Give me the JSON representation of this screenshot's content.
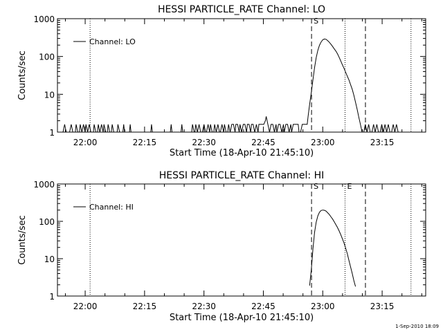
{
  "footer_timestamp": "1-Sep-2010 18:09",
  "time_origin_label": "Start Time (18-Apr-10 21:45:10)",
  "marker_labels": {
    "start": "S",
    "end": "E"
  },
  "chart_data": [
    {
      "type": "line",
      "title": "HESSI PARTICLE_RATE Channel: LO",
      "legend": "Channel: LO",
      "legend_position": "top-left",
      "xlabel": "Start Time (18-Apr-10 21:45:10)",
      "ylabel": "Counts/sec",
      "yscale": "log",
      "xlim": [
        21.8833,
        23.4333
      ],
      "ylim": [
        1,
        1000
      ],
      "x_unit": "hours (UT)",
      "xticks": [
        {
          "value": 22.0,
          "label": "22:00"
        },
        {
          "value": 22.25,
          "label": "22:15"
        },
        {
          "value": 22.5,
          "label": "22:30"
        },
        {
          "value": 22.75,
          "label": "22:45"
        },
        {
          "value": 23.0,
          "label": "23:00"
        },
        {
          "value": 23.25,
          "label": "23:15"
        }
      ],
      "yticks": [
        {
          "value": 1,
          "label": "1"
        },
        {
          "value": 10,
          "label": "10"
        },
        {
          "value": 100,
          "label": "100"
        },
        {
          "value": 1000,
          "label": "1000"
        }
      ],
      "markers": [
        {
          "kind": "dotted",
          "x": 22.0207
        },
        {
          "kind": "dashed",
          "x": 22.9528,
          "label": "S"
        },
        {
          "kind": "dotted",
          "x": 23.0938
        },
        {
          "kind": "dashed",
          "x": 23.1797
        },
        {
          "kind": "dotted",
          "x": 23.3714
        }
      ],
      "series": [
        {
          "name": "Channel: LO",
          "data": [
            [
              21.9066,
              1
            ],
            [
              21.9135,
              1.6
            ],
            [
              21.9204,
              1
            ],
            [
              21.9343,
              1
            ],
            [
              21.9412,
              1.6
            ],
            [
              21.9481,
              1
            ],
            [
              21.9584,
              1
            ],
            [
              21.9619,
              1.6
            ],
            [
              21.9688,
              1
            ],
            [
              21.9757,
              1
            ],
            [
              21.9792,
              1.6
            ],
            [
              21.9861,
              1
            ],
            [
              21.9929,
              1.6
            ],
            [
              21.9998,
              1
            ],
            [
              22.0033,
              1.6
            ],
            [
              22.0102,
              1
            ],
            [
              22.0171,
              1.6
            ],
            [
              22.024,
              1
            ],
            [
              22.0344,
              1
            ],
            [
              22.0378,
              1.6
            ],
            [
              22.0447,
              1
            ],
            [
              22.0516,
              1
            ],
            [
              22.0551,
              1.6
            ],
            [
              22.062,
              1
            ],
            [
              22.0689,
              1.6
            ],
            [
              22.0758,
              1
            ],
            [
              22.0792,
              1.6
            ],
            [
              22.0861,
              1
            ],
            [
              22.093,
              1
            ],
            [
              22.0965,
              1.6
            ],
            [
              22.1034,
              1
            ],
            [
              22.1103,
              1
            ],
            [
              22.1137,
              1.6
            ],
            [
              22.1206,
              1
            ],
            [
              22.1275,
              1
            ],
            [
              22.1344,
              1
            ],
            [
              22.1379,
              1.6
            ],
            [
              22.1448,
              1
            ],
            [
              22.1517,
              1
            ],
            [
              22.1586,
              1
            ],
            [
              22.162,
              1.6
            ],
            [
              22.1655,
              1
            ],
            [
              22.1862,
              1
            ],
            [
              22.1896,
              1.6
            ],
            [
              22.1931,
              1
            ],
            [
              22.2759,
              1
            ],
            [
              22.2793,
              1.6
            ],
            [
              22.2828,
              1
            ],
            [
              22.3586,
              1
            ],
            [
              22.3621,
              1.6
            ],
            [
              22.3655,
              1
            ],
            [
              22.4034,
              1
            ],
            [
              22.4069,
              1.6
            ],
            [
              22.4103,
              1
            ],
            [
              22.4483,
              1
            ],
            [
              22.4517,
              1.6
            ],
            [
              22.4586,
              1
            ],
            [
              22.462,
              1
            ],
            [
              22.4655,
              1.6
            ],
            [
              22.4724,
              1
            ],
            [
              22.4793,
              1.6
            ],
            [
              22.4862,
              1
            ],
            [
              22.4931,
              1
            ],
            [
              22.5,
              1.6
            ],
            [
              22.5069,
              1
            ],
            [
              22.5103,
              1
            ],
            [
              22.5172,
              1.6
            ],
            [
              22.5241,
              1
            ],
            [
              22.5276,
              1.6
            ],
            [
              22.5345,
              1
            ],
            [
              22.5414,
              1
            ],
            [
              22.5448,
              1.6
            ],
            [
              22.5517,
              1
            ],
            [
              22.5586,
              1.6
            ],
            [
              22.5655,
              1
            ],
            [
              22.569,
              1
            ],
            [
              22.5759,
              1.6
            ],
            [
              22.5828,
              1
            ],
            [
              22.5862,
              1.6
            ],
            [
              22.5931,
              1
            ],
            [
              22.6,
              1
            ],
            [
              22.6034,
              1.6
            ],
            [
              22.6103,
              1
            ],
            [
              22.6172,
              1.6
            ],
            [
              22.6241,
              1.6
            ],
            [
              22.631,
              1
            ],
            [
              22.6345,
              1.6
            ],
            [
              22.6414,
              1.6
            ],
            [
              22.6483,
              1
            ],
            [
              22.6517,
              1.6
            ],
            [
              22.6586,
              1
            ],
            [
              22.6655,
              1.6
            ],
            [
              22.6724,
              1.6
            ],
            [
              22.6793,
              1
            ],
            [
              22.6828,
              1.6
            ],
            [
              22.6897,
              1.6
            ],
            [
              22.6966,
              1
            ],
            [
              22.7,
              1.6
            ],
            [
              22.7069,
              1.6
            ],
            [
              22.7138,
              1
            ],
            [
              22.7207,
              1.6
            ],
            [
              22.7276,
              1
            ],
            [
              22.731,
              1.6
            ],
            [
              22.7379,
              1.6
            ],
            [
              22.7448,
              1.6
            ],
            [
              22.7517,
              1.6
            ],
            [
              22.7586,
              2
            ],
            [
              22.7621,
              2.6
            ],
            [
              22.769,
              1.6
            ],
            [
              22.7759,
              1
            ],
            [
              22.7828,
              1.6
            ],
            [
              22.7897,
              1.6
            ],
            [
              22.7966,
              1
            ],
            [
              22.8034,
              1.6
            ],
            [
              22.8069,
              1
            ],
            [
              22.8138,
              1.6
            ],
            [
              22.8207,
              1.6
            ],
            [
              22.8276,
              1
            ],
            [
              22.8345,
              1.6
            ],
            [
              22.8379,
              1
            ],
            [
              22.8448,
              1.6
            ],
            [
              22.8517,
              1.6
            ],
            [
              22.8586,
              1
            ],
            [
              22.8655,
              1.6
            ],
            [
              22.869,
              1
            ],
            [
              22.8759,
              1.6
            ],
            [
              22.8828,
              1.6
            ],
            [
              22.8897,
              1.6
            ],
            [
              22.8966,
              1.6
            ],
            [
              22.9,
              1
            ],
            [
              22.9069,
              1
            ],
            [
              22.9138,
              1.6
            ],
            [
              22.9207,
              1.6
            ],
            [
              22.9276,
              1.6
            ],
            [
              22.9345,
              1.6
            ],
            [
              22.9379,
              2.5
            ],
            [
              22.9448,
              5.4
            ],
            [
              22.9517,
              11
            ],
            [
              22.9586,
              24
            ],
            [
              22.9655,
              50
            ],
            [
              22.9724,
              93
            ],
            [
              22.9793,
              146
            ],
            [
              22.9862,
              197
            ],
            [
              22.9931,
              242
            ],
            [
              23.0,
              277
            ],
            [
              23.0069,
              290
            ],
            [
              23.0138,
              285
            ],
            [
              23.0207,
              262
            ],
            [
              23.0276,
              237
            ],
            [
              23.0345,
              211
            ],
            [
              23.0414,
              184
            ],
            [
              23.0483,
              159
            ],
            [
              23.0552,
              139
            ],
            [
              23.0621,
              117
            ],
            [
              23.069,
              95
            ],
            [
              23.0759,
              76
            ],
            [
              23.0828,
              60
            ],
            [
              23.0897,
              48
            ],
            [
              23.0966,
              38
            ],
            [
              23.1034,
              30
            ],
            [
              23.1103,
              24
            ],
            [
              23.1172,
              18
            ],
            [
              23.1241,
              13.5
            ],
            [
              23.131,
              9.5
            ],
            [
              23.1379,
              6.2
            ],
            [
              23.1448,
              4
            ],
            [
              23.1517,
              2.5
            ],
            [
              23.1586,
              1.6
            ],
            [
              23.1655,
              1
            ],
            [
              23.1724,
              1
            ],
            [
              23.1793,
              1.6
            ],
            [
              23.1862,
              1
            ],
            [
              23.1931,
              1.6
            ],
            [
              23.2,
              1
            ],
            [
              23.2069,
              1
            ],
            [
              23.2138,
              1.6
            ],
            [
              23.2207,
              1
            ],
            [
              23.2276,
              1.6
            ],
            [
              23.2345,
              1
            ],
            [
              23.2414,
              1
            ],
            [
              23.2483,
              1.6
            ],
            [
              23.2552,
              1
            ],
            [
              23.2621,
              1.6
            ],
            [
              23.269,
              1
            ],
            [
              23.2759,
              1.6
            ],
            [
              23.2828,
              1
            ],
            [
              23.2897,
              1
            ],
            [
              23.2966,
              1.6
            ],
            [
              23.3034,
              1
            ],
            [
              23.3103,
              1.6
            ],
            [
              23.3172,
              1
            ]
          ]
        }
      ]
    },
    {
      "type": "line",
      "title": "HESSI PARTICLE_RATE Channel: HI",
      "legend": "Channel: HI",
      "legend_position": "top-left",
      "xlabel": "Start Time (18-Apr-10 21:45:10)",
      "ylabel": "Counts/sec",
      "yscale": "log",
      "xlim": [
        21.8833,
        23.4333
      ],
      "ylim": [
        1,
        1000
      ],
      "x_unit": "hours (UT)",
      "xticks": [
        {
          "value": 22.0,
          "label": "22:00"
        },
        {
          "value": 22.25,
          "label": "22:15"
        },
        {
          "value": 22.5,
          "label": "22:30"
        },
        {
          "value": 22.75,
          "label": "22:45"
        },
        {
          "value": 23.0,
          "label": "23:00"
        },
        {
          "value": 23.25,
          "label": "23:15"
        }
      ],
      "yticks": [
        {
          "value": 1,
          "label": "1"
        },
        {
          "value": 10,
          "label": "10"
        },
        {
          "value": 100,
          "label": "100"
        },
        {
          "value": 1000,
          "label": "1000"
        }
      ],
      "markers": [
        {
          "kind": "dotted",
          "x": 22.0207
        },
        {
          "kind": "dashed",
          "x": 22.9528,
          "label": "S"
        },
        {
          "kind": "dotted",
          "x": 23.0938,
          "label": "E"
        },
        {
          "kind": "dashed",
          "x": 23.1797
        },
        {
          "kind": "dotted",
          "x": 23.3714
        }
      ],
      "series": [
        {
          "name": "Channel: HI",
          "data": [
            [
              22.9448,
              1.9
            ],
            [
              22.9517,
              5
            ],
            [
              22.9586,
              18
            ],
            [
              22.9655,
              50
            ],
            [
              22.9724,
              95
            ],
            [
              22.9793,
              140
            ],
            [
              22.9862,
              175
            ],
            [
              22.9931,
              195
            ],
            [
              23.0,
              200
            ],
            [
              23.0069,
              198
            ],
            [
              23.0138,
              188
            ],
            [
              23.0207,
              170
            ],
            [
              23.0276,
              152
            ],
            [
              23.0345,
              132
            ],
            [
              23.0414,
              115
            ],
            [
              23.0483,
              97
            ],
            [
              23.0552,
              82
            ],
            [
              23.0621,
              68
            ],
            [
              23.069,
              55
            ],
            [
              23.0759,
              44
            ],
            [
              23.0828,
              34
            ],
            [
              23.0897,
              26
            ],
            [
              23.0966,
              19
            ],
            [
              23.1034,
              13.5
            ],
            [
              23.1103,
              9
            ],
            [
              23.1172,
              6
            ],
            [
              23.1241,
              4
            ],
            [
              23.131,
              2.6
            ],
            [
              23.1379,
              1.8
            ]
          ]
        }
      ]
    }
  ]
}
